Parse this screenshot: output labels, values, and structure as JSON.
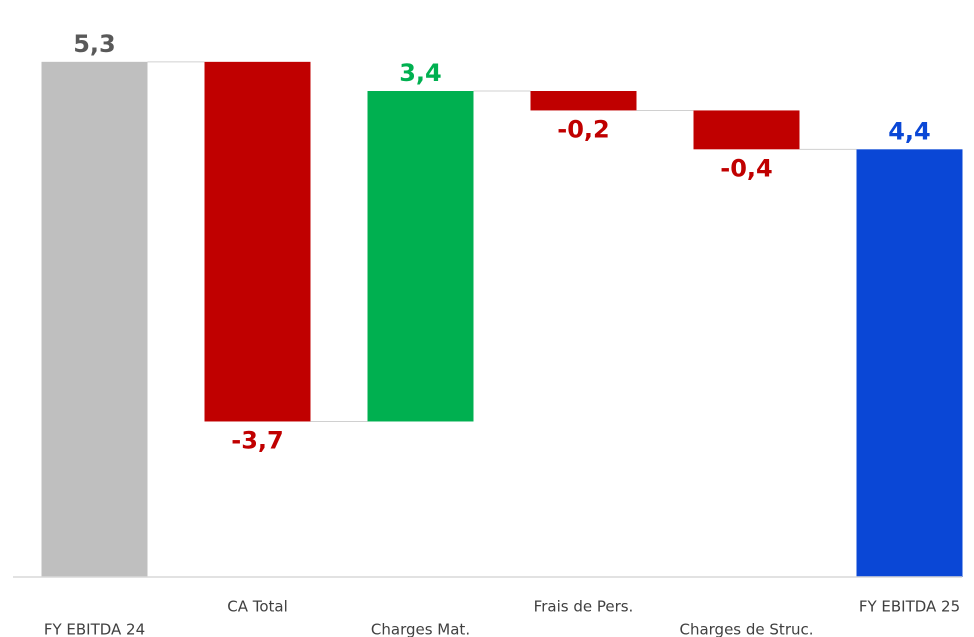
{
  "chart_data": {
    "type": "waterfall",
    "categories": [
      "FY EBITDA 24",
      "CA Total",
      "Charges Mat.",
      "Frais de Pers.",
      "Charges de Struc.",
      "FY EBITDA 25"
    ],
    "values": [
      5.3,
      -3.7,
      3.4,
      -0.2,
      -0.4,
      4.4
    ],
    "value_labels": [
      "5,3",
      "-3,7",
      "3,4",
      "-0,2",
      "-0,4",
      "4,4"
    ],
    "is_total": [
      true,
      false,
      false,
      false,
      false,
      true
    ],
    "colors": [
      "#bfbfbf",
      "#c00000",
      "#00b050",
      "#c00000",
      "#c00000",
      "#0a47d6"
    ],
    "label_colors": [
      "#595959",
      "#c00000",
      "#00b050",
      "#c00000",
      "#c00000",
      "#0a47d6"
    ],
    "ylim": [
      0,
      6
    ]
  }
}
